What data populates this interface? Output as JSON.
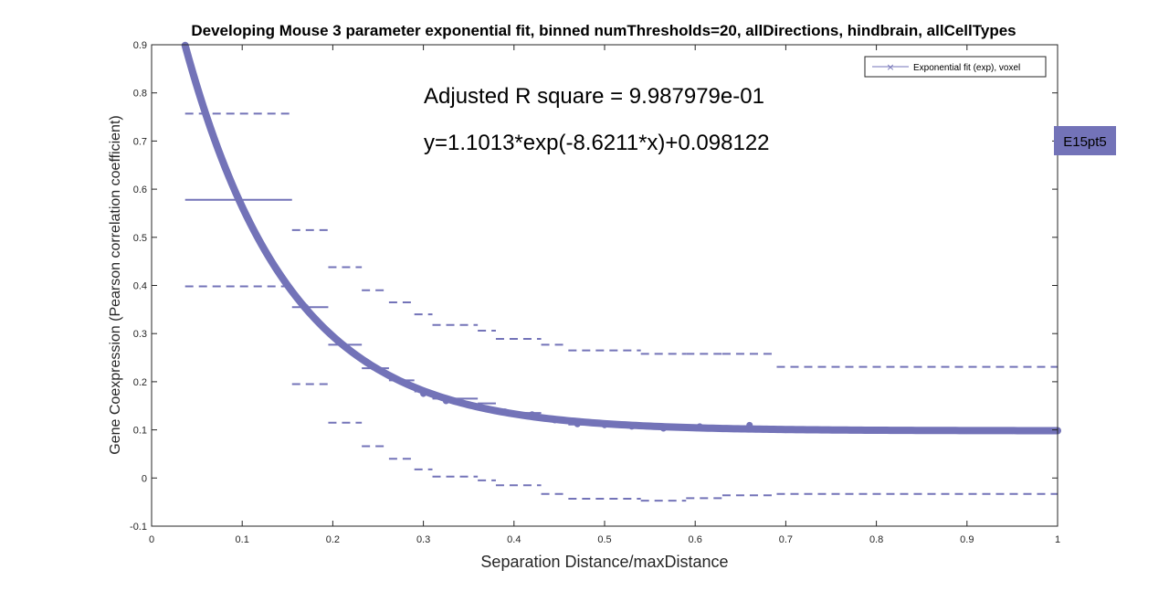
{
  "chart_data": {
    "type": "line",
    "title": "Developing Mouse 3 parameter exponential fit, binned numThresholds=20, allDirections, hindbrain, allCellTypes",
    "xlabel": "Separation Distance/maxDistance",
    "ylabel": "Gene Coexpression (Pearson correlation coefficient)",
    "xlim": [
      0,
      1
    ],
    "ylim": [
      -0.1,
      0.9
    ],
    "xticks": [
      0,
      0.1,
      0.2,
      0.3,
      0.4,
      0.5,
      0.6,
      0.7,
      0.8,
      0.9,
      1
    ],
    "xtick_labels": [
      "0",
      "0.1",
      "0.2",
      "0.3",
      "0.4",
      "0.5",
      "0.6",
      "0.7",
      "0.8",
      "0.9",
      "1"
    ],
    "yticks": [
      -0.1,
      0,
      0.1,
      0.2,
      0.3,
      0.4,
      0.5,
      0.6,
      0.7,
      0.8,
      0.9
    ],
    "ytick_labels": [
      "-0.1",
      "0",
      "0.1",
      "0.2",
      "0.3",
      "0.4",
      "0.5",
      "0.6",
      "0.7",
      "0.8",
      "0.9"
    ],
    "grid": false,
    "legend": {
      "location": "top-right",
      "entries": [
        "Exponential fit (exp), voxel"
      ]
    },
    "annotations": {
      "r_square": "Adjusted R square = 9.987979e-01",
      "equation": "y=1.1013*exp(-8.6211*x)+0.098122",
      "side_tag": "E15pt5"
    },
    "fit": {
      "a": 1.1013,
      "b": -8.6211,
      "c": 0.098122,
      "x_range": [
        0.037,
        1.0
      ]
    },
    "series_color": "#7373b8",
    "bins": [
      {
        "x0": 0.037,
        "x1": 0.155,
        "mean": 0.578,
        "upper": 0.757,
        "lower": 0.398
      },
      {
        "x0": 0.155,
        "x1": 0.195,
        "mean": 0.355,
        "upper": 0.515,
        "lower": 0.195
      },
      {
        "x0": 0.195,
        "x1": 0.232,
        "mean": 0.277,
        "upper": 0.438,
        "lower": 0.115
      },
      {
        "x0": 0.232,
        "x1": 0.262,
        "mean": 0.228,
        "upper": 0.39,
        "lower": 0.066
      },
      {
        "x0": 0.262,
        "x1": 0.29,
        "mean": 0.203,
        "upper": 0.365,
        "lower": 0.04
      },
      {
        "x0": 0.29,
        "x1": 0.31,
        "mean": 0.18,
        "upper": 0.34,
        "lower": 0.018
      },
      {
        "x0": 0.31,
        "x1": 0.36,
        "mean": 0.165,
        "upper": 0.318,
        "lower": 0.003
      },
      {
        "x0": 0.36,
        "x1": 0.38,
        "mean": 0.155,
        "upper": 0.306,
        "lower": -0.005
      },
      {
        "x0": 0.38,
        "x1": 0.43,
        "mean": 0.135,
        "upper": 0.289,
        "lower": -0.015
      },
      {
        "x0": 0.43,
        "x1": 0.46,
        "mean": 0.12,
        "upper": 0.277,
        "lower": -0.033
      },
      {
        "x0": 0.46,
        "x1": 0.54,
        "mean": 0.111,
        "upper": 0.265,
        "lower": -0.043
      },
      {
        "x0": 0.54,
        "x1": 0.59,
        "mean": 0.107,
        "upper": 0.258,
        "lower": -0.047
      },
      {
        "x0": 0.59,
        "x1": 0.63,
        "mean": 0.105,
        "upper": 0.258,
        "lower": -0.042
      },
      {
        "x0": 0.63,
        "x1": 0.69,
        "mean": 0.106,
        "upper": 0.258,
        "lower": -0.036
      },
      {
        "x0": 0.69,
        "x1": 1.0,
        "mean": 0.1,
        "upper": 0.231,
        "lower": -0.033
      }
    ],
    "points": [
      {
        "x": 0.038,
        "y": 0.89
      },
      {
        "x": 0.17,
        "y": 0.355
      },
      {
        "x": 0.205,
        "y": 0.285
      },
      {
        "x": 0.245,
        "y": 0.23
      },
      {
        "x": 0.275,
        "y": 0.2
      },
      {
        "x": 0.3,
        "y": 0.175
      },
      {
        "x": 0.325,
        "y": 0.16
      },
      {
        "x": 0.36,
        "y": 0.148
      },
      {
        "x": 0.39,
        "y": 0.138
      },
      {
        "x": 0.42,
        "y": 0.132
      },
      {
        "x": 0.445,
        "y": 0.12
      },
      {
        "x": 0.47,
        "y": 0.112
      },
      {
        "x": 0.5,
        "y": 0.11
      },
      {
        "x": 0.53,
        "y": 0.107
      },
      {
        "x": 0.565,
        "y": 0.103
      },
      {
        "x": 0.605,
        "y": 0.107
      },
      {
        "x": 0.66,
        "y": 0.11
      },
      {
        "x": 0.7,
        "y": 0.1
      },
      {
        "x": 0.75,
        "y": 0.1
      },
      {
        "x": 0.8,
        "y": 0.099
      },
      {
        "x": 0.85,
        "y": 0.099
      },
      {
        "x": 0.9,
        "y": 0.098
      },
      {
        "x": 0.95,
        "y": 0.098
      },
      {
        "x": 1.0,
        "y": 0.098
      }
    ]
  }
}
